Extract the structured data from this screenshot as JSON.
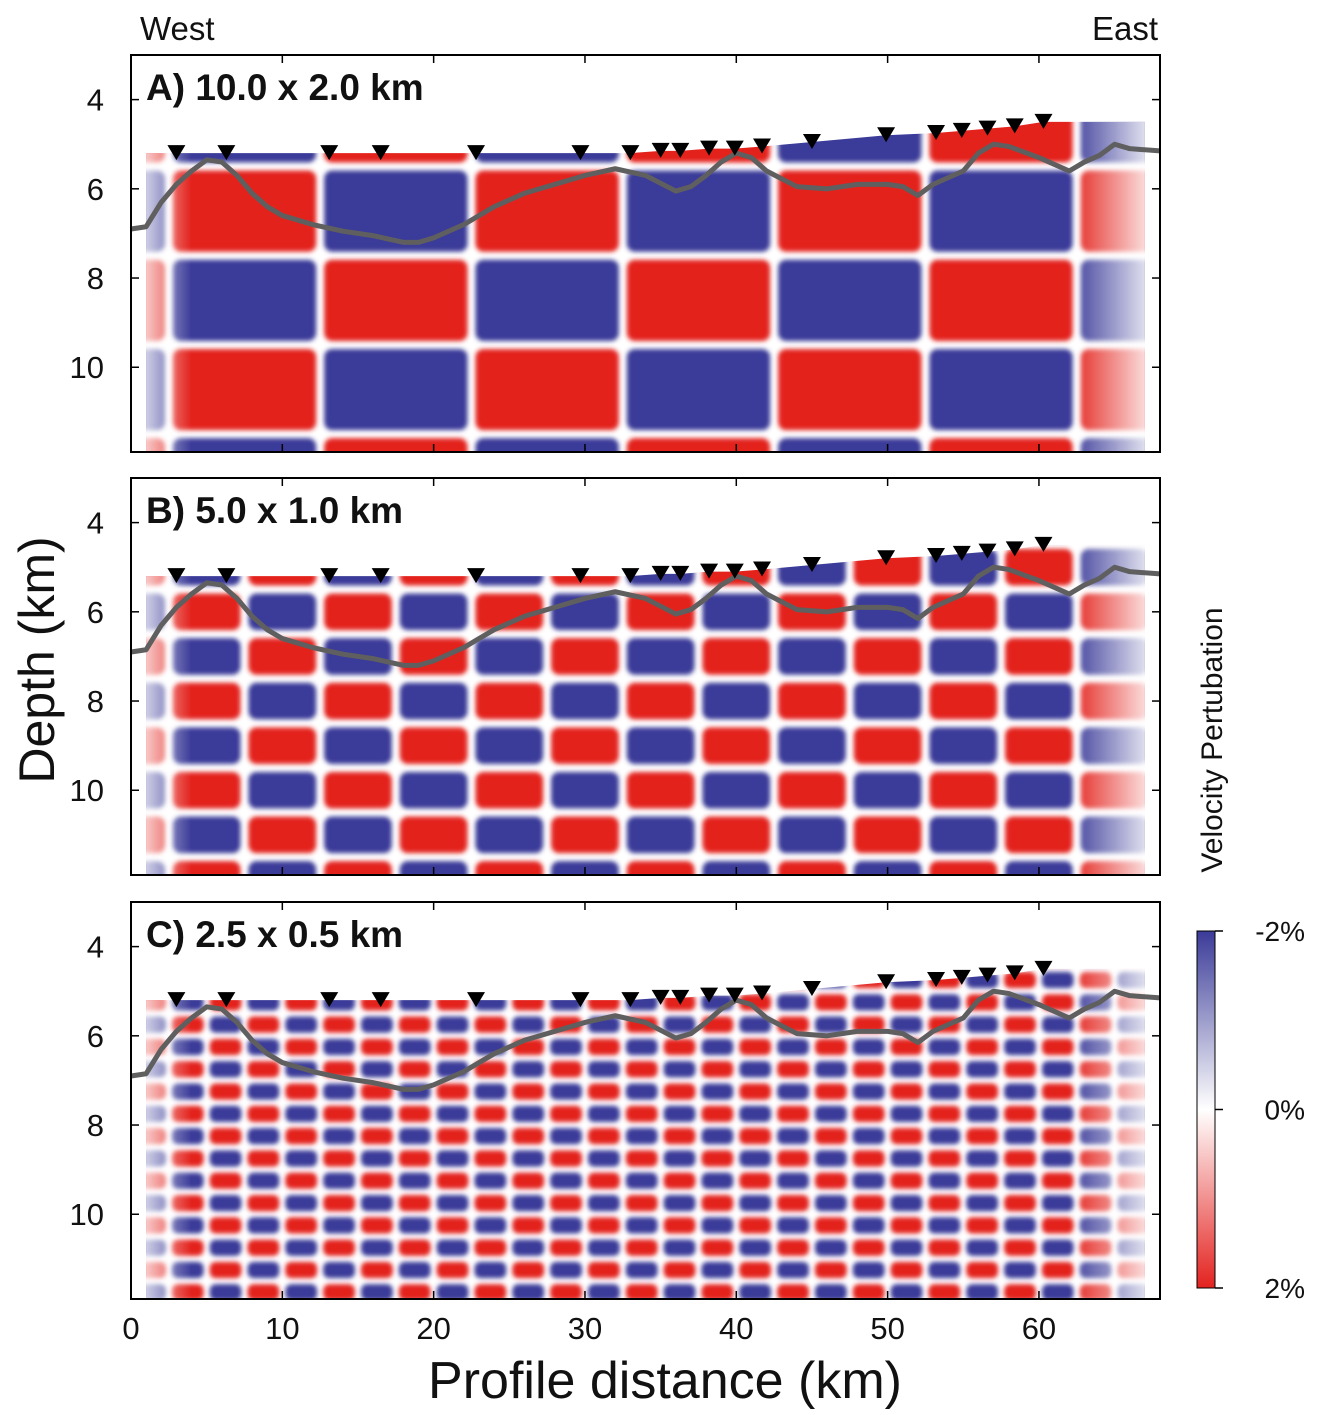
{
  "chart_data": {
    "type": "checkerboard",
    "left_label": "West",
    "right_label": "East",
    "ylabel": "Depth (km)",
    "xlabel": "Profile distance (km)",
    "colorbar_label": "Velocity Pertubation",
    "xlim": [
      0,
      68
    ],
    "xticks": [
      0,
      10,
      20,
      30,
      40,
      50,
      60
    ],
    "ylim": [
      3,
      11.9
    ],
    "yticks": [
      4,
      6,
      8,
      10
    ],
    "clim": [
      -2,
      2
    ],
    "cticks": [
      {
        "value": -2,
        "label": "-2%"
      },
      {
        "value": 0,
        "label": "0%"
      },
      {
        "value": 2,
        "label": "2%"
      }
    ],
    "colormap": [
      "#3b3b99",
      "#ffffff",
      "#e3221f"
    ],
    "panels": [
      {
        "title": "A) 10.0 x 2.0 km",
        "cell_size": [
          10,
          2
        ]
      },
      {
        "title": "B) 5.0 x 1.0 km",
        "cell_size": [
          5,
          1
        ]
      },
      {
        "title": "C) 2.5 x 0.5 km",
        "cell_size": [
          2.5,
          0.5
        ]
      }
    ],
    "stations": {
      "color": "#000000",
      "x": [
        3.0,
        6.3,
        13.1,
        16.5,
        22.8,
        29.7,
        33.0,
        35.0,
        36.3,
        38.2,
        39.9,
        41.7,
        45.0,
        49.9,
        53.2,
        54.9,
        56.6,
        58.4,
        60.3
      ],
      "y": [
        5.2,
        5.2,
        5.2,
        5.2,
        5.2,
        5.2,
        5.2,
        5.15,
        5.15,
        5.1,
        5.1,
        5.05,
        4.95,
        4.8,
        4.75,
        4.7,
        4.65,
        4.6,
        4.5
      ]
    },
    "basement": {
      "color": "#5f5f5f",
      "x": [
        0,
        1,
        2,
        3,
        4,
        5,
        6,
        7,
        8,
        9,
        10,
        12,
        14,
        16,
        18,
        19,
        20,
        22,
        24,
        26,
        28,
        30,
        32,
        34,
        36,
        37,
        38,
        39,
        40,
        41,
        42,
        44,
        46,
        48,
        50,
        51,
        52,
        53,
        55,
        56,
        57,
        58,
        60,
        62,
        63,
        64,
        65,
        66,
        68
      ],
      "y": [
        6.9,
        6.85,
        6.3,
        5.9,
        5.6,
        5.35,
        5.4,
        5.7,
        6.1,
        6.4,
        6.6,
        6.8,
        6.95,
        7.05,
        7.2,
        7.2,
        7.1,
        6.8,
        6.4,
        6.1,
        5.9,
        5.7,
        5.55,
        5.7,
        6.05,
        5.95,
        5.7,
        5.4,
        5.2,
        5.3,
        5.6,
        5.95,
        6.0,
        5.9,
        5.9,
        5.95,
        6.15,
        5.9,
        5.6,
        5.2,
        5.0,
        5.05,
        5.3,
        5.6,
        5.4,
        5.25,
        5.0,
        5.1,
        5.15
      ]
    }
  }
}
